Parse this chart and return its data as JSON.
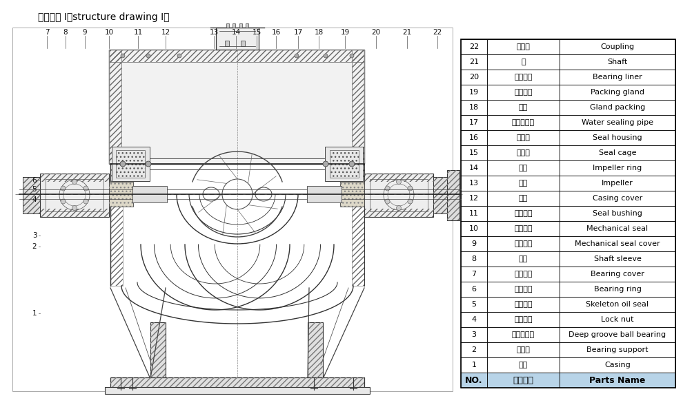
{
  "title": "结构形式 I（structure drawing I）",
  "table_data": [
    [
      "22",
      "联轴器",
      "Coupling"
    ],
    [
      "21",
      "轴",
      "Shaft"
    ],
    [
      "20",
      "轴承衬圈",
      "Bearing liner"
    ],
    [
      "19",
      "填料压盖",
      "Packing gland"
    ],
    [
      "18",
      "填料",
      "Gland packing"
    ],
    [
      "17",
      "水封管部件",
      "Water sealing pipe"
    ],
    [
      "16",
      "密封体",
      "Seal housing"
    ],
    [
      "15",
      "填料环",
      "Seal cage"
    ],
    [
      "14",
      "口环",
      "Impeller ring"
    ],
    [
      "13",
      "叶轮",
      "Impeller"
    ],
    [
      "12",
      "泵盖",
      "Casing cover"
    ],
    [
      "11",
      "密封衬套",
      "Seal bushing"
    ],
    [
      "10",
      "机械密封",
      "Mechanical seal"
    ],
    [
      "9",
      "机封压盖",
      "Mechanical seal cover"
    ],
    [
      "8",
      "轴套",
      "Shaft sleeve"
    ],
    [
      "7",
      "轴承压盖",
      "Bearing cover"
    ],
    [
      "6",
      "轴承压环",
      "Bearing ring"
    ],
    [
      "5",
      "骨架油封",
      "Skeleton oil seal"
    ],
    [
      "4",
      "锁紧螺母",
      "Lock nut"
    ],
    [
      "3",
      "深沟球轴承",
      "Deep groove ball bearing"
    ],
    [
      "2",
      "轴承体",
      "Bearing support"
    ],
    [
      "1",
      "泵体",
      "Casing"
    ]
  ],
  "header": [
    "NO.",
    "零件名称",
    "Parts Name"
  ],
  "table_bg_header": "#b8d4e8",
  "table_bg_normal": "#ffffff",
  "table_border": "#000000",
  "bg_color": "#ffffff",
  "text_color": "#000000"
}
